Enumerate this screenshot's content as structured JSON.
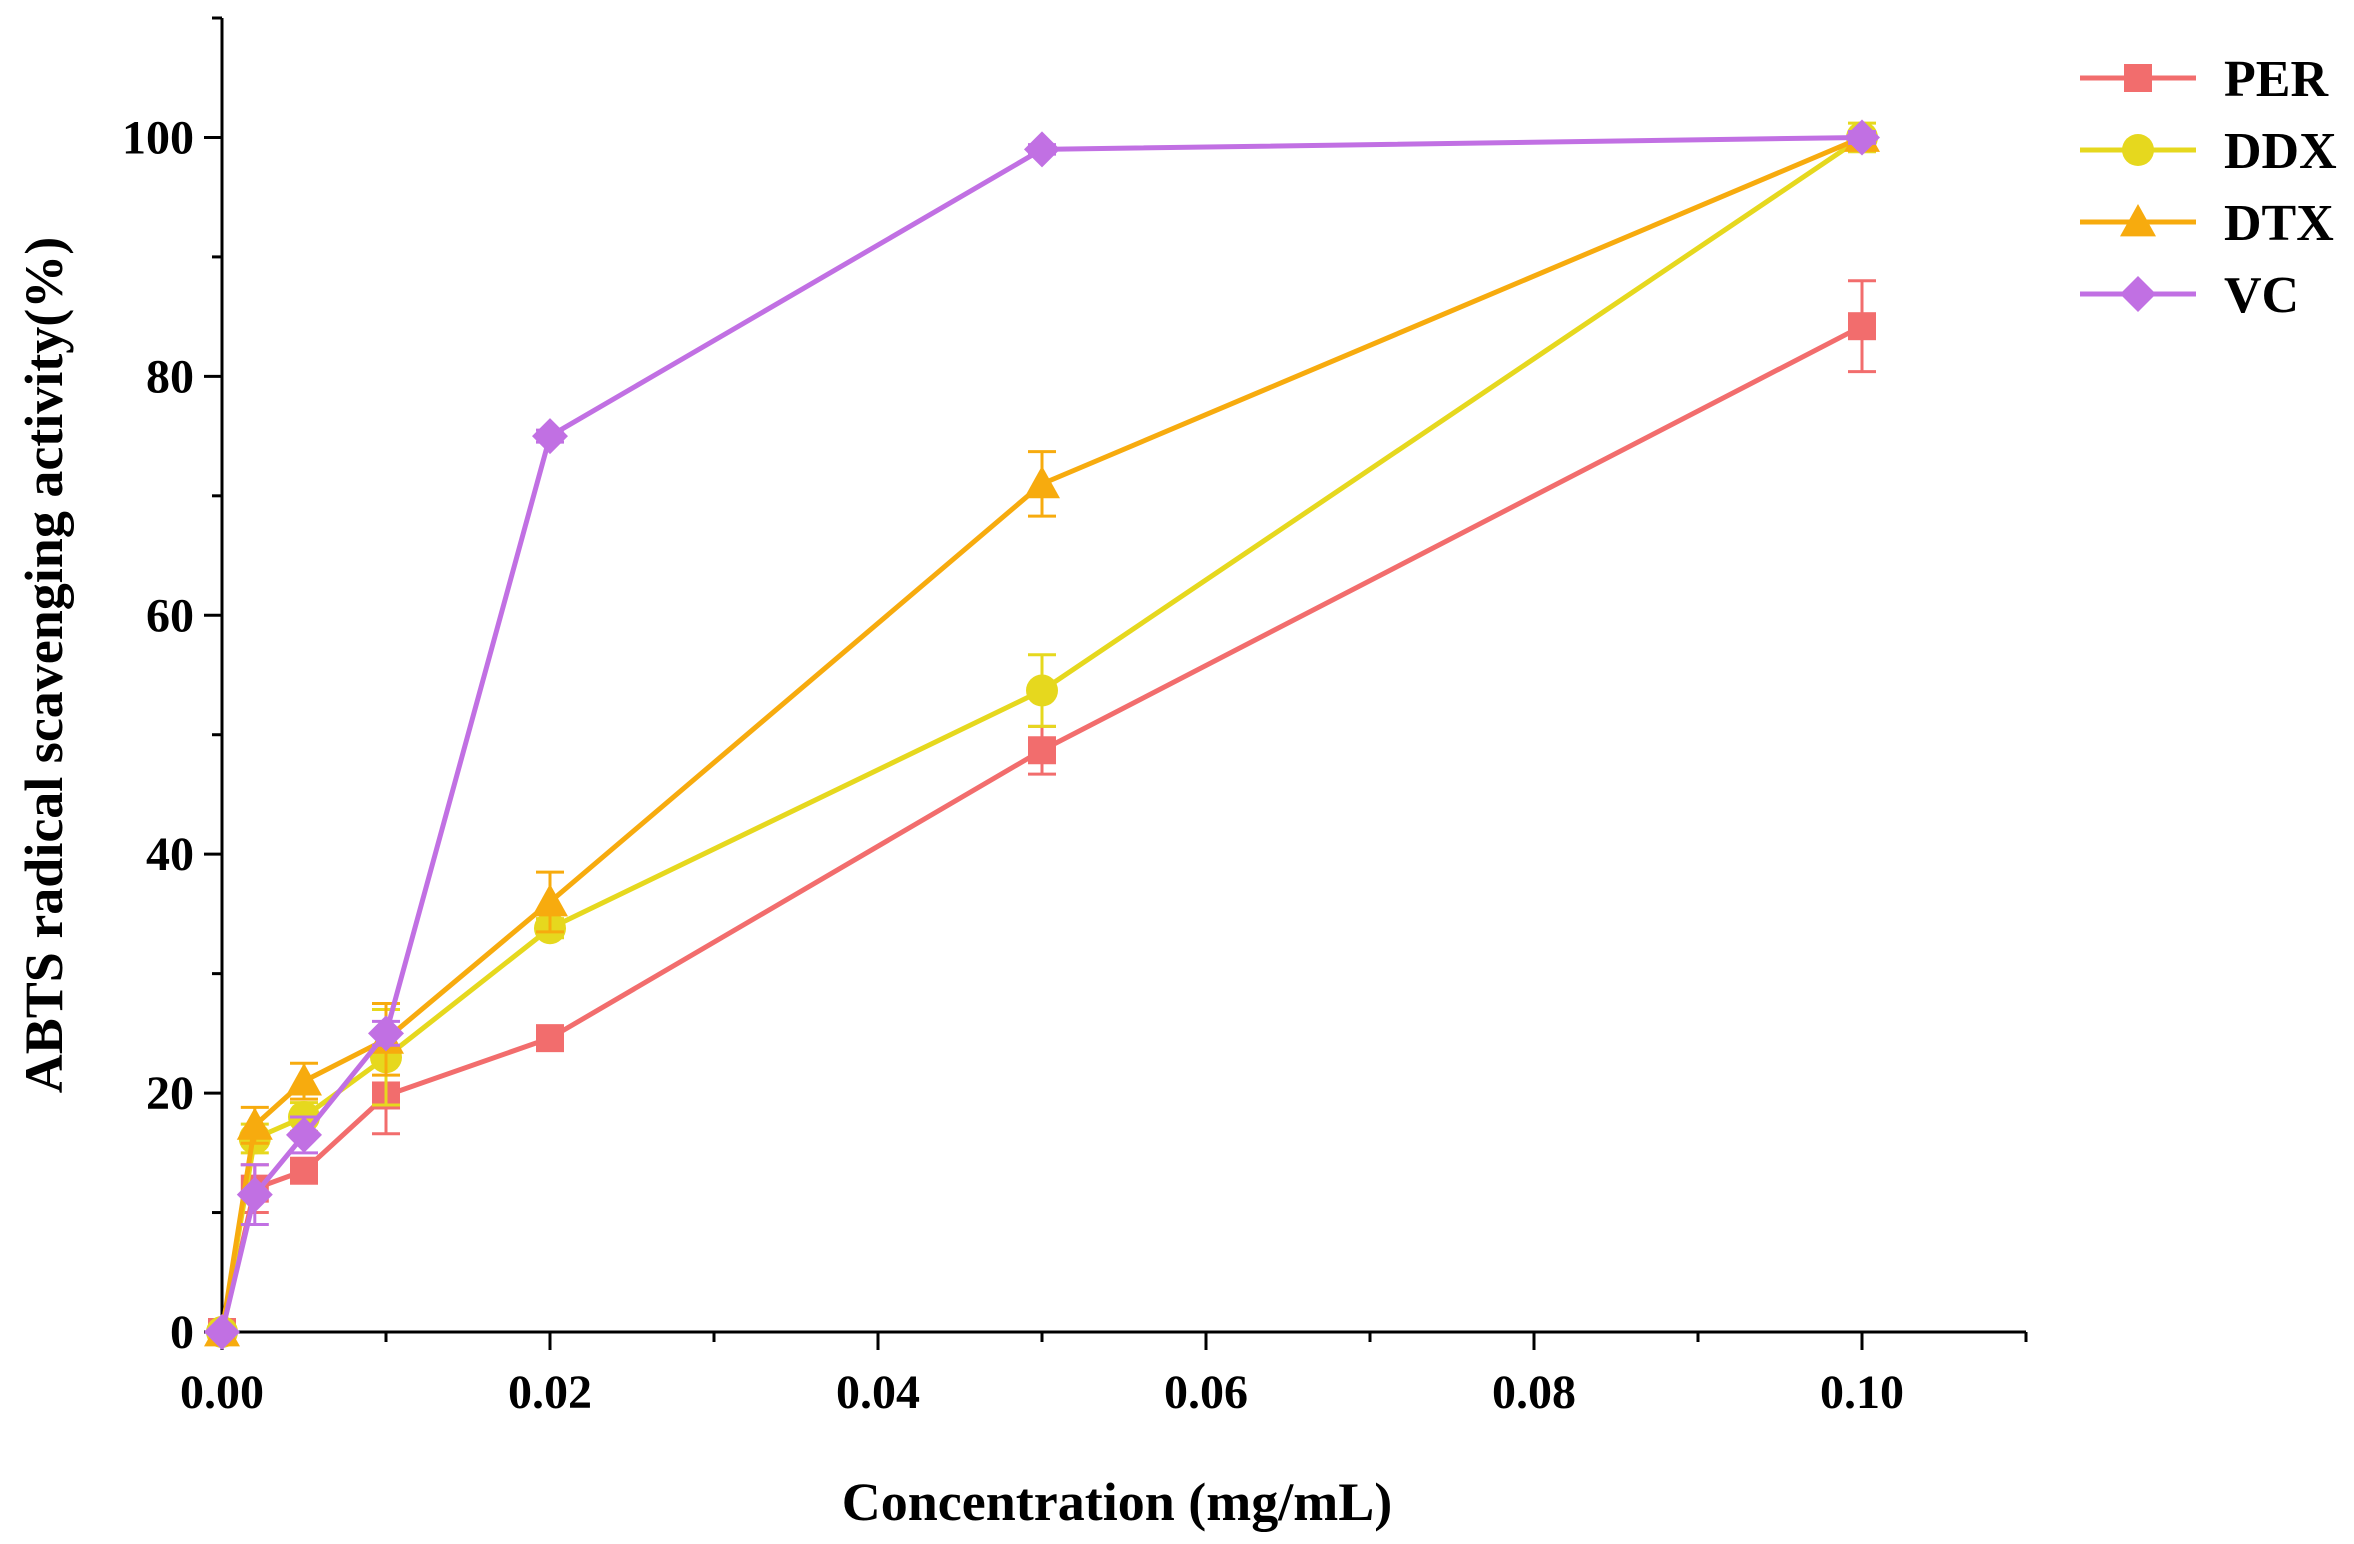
{
  "chart_data": {
    "type": "line",
    "title": "",
    "xlabel": "Concentration (mg/mL)",
    "ylabel": "ABTS radical scavenging activity(%)",
    "xlim": [
      0,
      0.11
    ],
    "ylim": [
      0,
      110
    ],
    "xticks": [
      "0.00",
      "0.02",
      "0.04",
      "0.06",
      "0.08",
      "0.10"
    ],
    "yticks": [
      "0",
      "20",
      "40",
      "60",
      "80",
      "100"
    ],
    "grid": false,
    "legend_position": "top-right",
    "x": [
      0,
      0.002,
      0.005,
      0.01,
      0.02,
      0.05,
      0.1
    ],
    "series": [
      {
        "name": "PER",
        "color": "#f26d6d",
        "marker": "square",
        "values": [
          0,
          12.0,
          13.5,
          19.8,
          24.6,
          48.7,
          84.2
        ],
        "errors": [
          0,
          2.0,
          1.0,
          3.2,
          0.7,
          2.0,
          3.8
        ]
      },
      {
        "name": "DDX",
        "color": "#e6d81e",
        "marker": "circle",
        "values": [
          0,
          16.2,
          18.0,
          23.0,
          33.8,
          53.7,
          100.0
        ],
        "errors": [
          0,
          1.2,
          1.2,
          4.0,
          0.8,
          3.0,
          1.2
        ]
      },
      {
        "name": "DTX",
        "color": "#f7ab0e",
        "marker": "triangle",
        "values": [
          0,
          17.3,
          21.0,
          24.5,
          36.0,
          71.0,
          100.0
        ],
        "errors": [
          0,
          1.5,
          1.5,
          3.0,
          2.5,
          2.7,
          0.5
        ]
      },
      {
        "name": "VC",
        "color": "#c170e3",
        "marker": "diamond",
        "values": [
          0,
          11.5,
          16.5,
          25.0,
          75.0,
          99.0,
          100.0
        ],
        "errors": [
          0,
          2.5,
          1.5,
          1.0,
          0.5,
          0.4,
          0.5
        ]
      }
    ]
  }
}
